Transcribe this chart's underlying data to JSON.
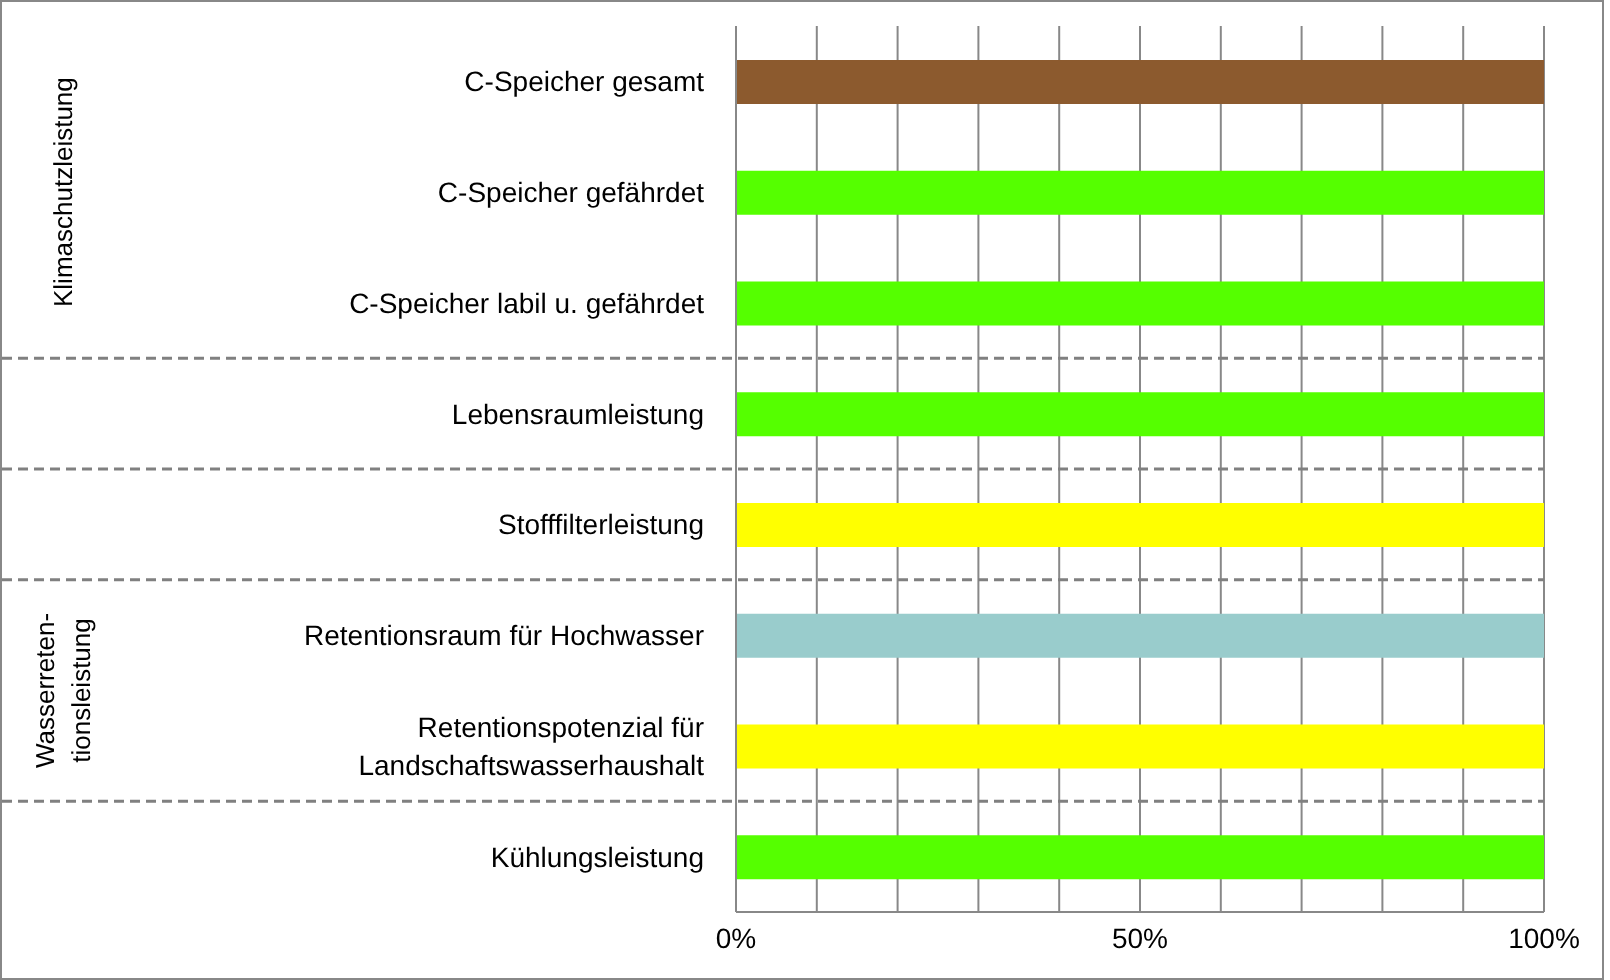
{
  "chart_data": {
    "type": "bar",
    "orientation": "horizontal",
    "categories": [
      "C-Speicher gesamt",
      "C-Speicher gefährdet",
      "C-Speicher labil u. gefährdet",
      "Lebensraumleistung",
      "Stofffilterleistung",
      "Retentionsraum für Hochwasser",
      "Retentionspotenzial für Landschaftswasserhaushalt",
      "Kühlungsleistung"
    ],
    "values": [
      100,
      100,
      100,
      100,
      100,
      100,
      100,
      100
    ],
    "colors": [
      "#8c5a2e",
      "#55ff00",
      "#55ff00",
      "#55ff00",
      "#ffff00",
      "#99cccc",
      "#ffff00",
      "#55ff00"
    ],
    "xlim": [
      0,
      100
    ],
    "xticks": [
      {
        "value": 0,
        "label": "0%"
      },
      {
        "value": 10,
        "label": null
      },
      {
        "value": 20,
        "label": null
      },
      {
        "value": 30,
        "label": null
      },
      {
        "value": 40,
        "label": null
      },
      {
        "value": 50,
        "label": "50%"
      },
      {
        "value": 60,
        "label": null
      },
      {
        "value": 70,
        "label": null
      },
      {
        "value": 80,
        "label": null
      },
      {
        "value": 90,
        "label": null
      },
      {
        "value": 100,
        "label": "100%"
      }
    ],
    "grid": "x",
    "annotations": [
      "Klimaschutzleistung",
      "Wasserreten-tionsleistung"
    ]
  }
}
